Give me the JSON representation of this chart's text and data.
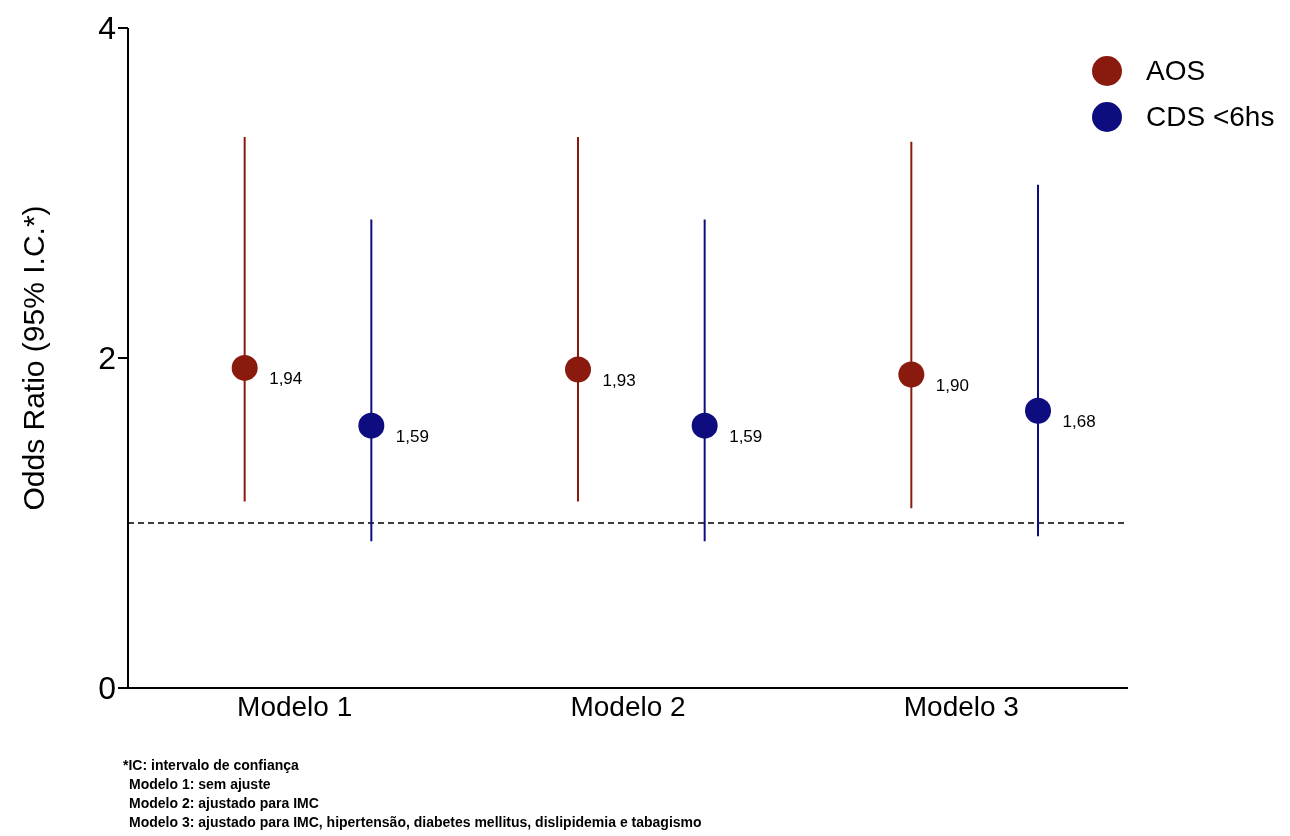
{
  "chart_data": {
    "type": "scatter",
    "ylabel": "Odds Ratio (95% I.C.*)",
    "categories": [
      "Modelo 1",
      "Modelo 2",
      "Modelo 3"
    ],
    "series": [
      {
        "name": "AOS",
        "color": "#8b1a0e",
        "values": [
          1.94,
          1.93,
          1.9
        ],
        "errors": [
          [
            1.13,
            3.34
          ],
          [
            1.13,
            3.34
          ],
          [
            1.09,
            3.31
          ]
        ],
        "value_labels": [
          "1,94",
          "1,93",
          "1,90"
        ]
      },
      {
        "name": "CDS <6hs",
        "color": "#0d0d80",
        "values": [
          1.59,
          1.59,
          1.68
        ],
        "errors": [
          [
            0.89,
            2.84
          ],
          [
            0.89,
            2.84
          ],
          [
            0.92,
            3.05
          ]
        ],
        "value_labels": [
          "1,59",
          "1,59",
          "1,68"
        ]
      }
    ],
    "ylim": [
      0,
      4
    ],
    "yticks": [
      0,
      2,
      4
    ],
    "grid": false,
    "legend": "top right",
    "marker": "circle",
    "ref_lines": [
      {
        "axis": "y",
        "value": 1,
        "line_style": "dashed",
        "color": "#000000"
      }
    ],
    "annotations": [
      "*IC: intervalo de confiança",
      "Modelo 1: sem ajuste",
      "Modelo 2: ajustado para IMC",
      "Modelo 3: ajustado para IMC, hipertensão, diabetes mellitus, dislipidemia e tabagismo"
    ]
  }
}
